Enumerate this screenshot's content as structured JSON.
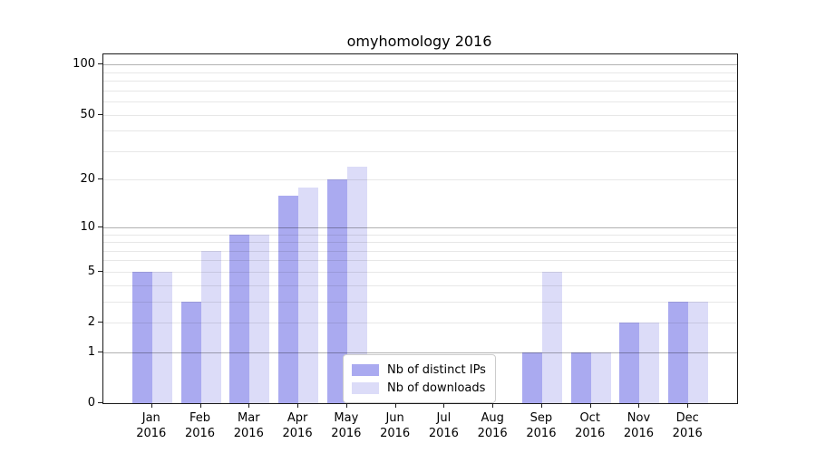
{
  "chart_data": {
    "type": "bar",
    "title": "omyhomology 2016",
    "yscale": "log1p",
    "ylim": [
      0,
      115
    ],
    "y_ticks": [
      0,
      1,
      2,
      5,
      10,
      20,
      50,
      100
    ],
    "categories": [
      "Jan",
      "Feb",
      "Mar",
      "Apr",
      "May",
      "Jun",
      "Jul",
      "Aug",
      "Sep",
      "Oct",
      "Nov",
      "Dec"
    ],
    "year_label": "2016",
    "series": [
      {
        "name": "Nb of distinct IPs",
        "color": "#aaaaf0",
        "values": [
          5,
          3,
          9,
          16,
          20,
          0,
          0,
          0,
          1,
          1,
          2,
          3
        ]
      },
      {
        "name": "Nb of downloads",
        "color": "#dcdcf8",
        "values": [
          5,
          7,
          9,
          18,
          24,
          0,
          0,
          0,
          5,
          1,
          2,
          3
        ]
      }
    ],
    "legend_position": "lower center",
    "grid": "horizontal-major-and-minor",
    "colors": {
      "major_grid": "#b3b3b3",
      "minor_grid": "#e7e7e7",
      "spine": "#1a1a1a"
    }
  }
}
